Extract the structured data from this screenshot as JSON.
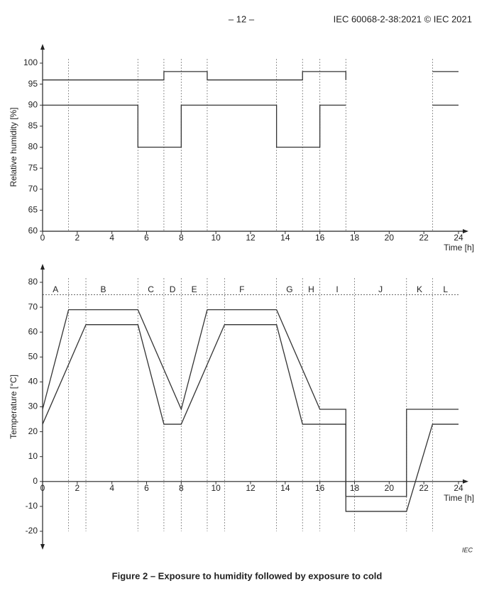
{
  "header": {
    "page": "– 12 –",
    "standard": "IEC 60068-2-38:2021 © IEC 2021"
  },
  "chart_data": [
    {
      "type": "line",
      "ylabel": "Relative humidity [%]",
      "xlabel": "Time [h]",
      "xlim": [
        0,
        24
      ],
      "xticks": [
        0,
        2,
        4,
        6,
        8,
        10,
        12,
        14,
        16,
        18,
        20,
        22,
        24
      ],
      "ylim": [
        60,
        100
      ],
      "yticks": [
        60,
        65,
        70,
        75,
        80,
        85,
        90,
        95,
        100
      ],
      "markers": [
        1.5,
        5.5,
        7,
        8,
        9.5,
        13.5,
        15,
        16,
        17.5,
        22.5
      ],
      "series": [
        {
          "color": "#333333",
          "x": [
            0,
            7,
            7,
            9.5,
            9.5,
            15,
            15,
            17.5,
            17.5,
            22.5,
            22.5,
            24
          ],
          "values": [
            96,
            96,
            98,
            98,
            96,
            96,
            98,
            98,
            96,
            null,
            98,
            98
          ]
        },
        {
          "color": "#333333",
          "x": [
            0,
            5.5,
            5.5,
            8,
            8,
            13.5,
            13.5,
            16,
            16,
            17.5,
            22.5,
            22.5,
            24
          ],
          "values": [
            90,
            90,
            80,
            80,
            90,
            90,
            80,
            80,
            90,
            90,
            null,
            90,
            90
          ]
        }
      ]
    },
    {
      "type": "line",
      "ylabel": "Temperature [°C]",
      "xlabel": "Time [h]",
      "xlim": [
        0,
        24
      ],
      "xticks": [
        0,
        2,
        4,
        6,
        8,
        10,
        12,
        14,
        16,
        18,
        20,
        22,
        24
      ],
      "ylim": [
        -20,
        80
      ],
      "yticks": [
        -20,
        -10,
        0,
        10,
        20,
        30,
        40,
        50,
        60,
        70,
        80
      ],
      "markers": [
        1.5,
        2.5,
        5.5,
        7,
        8,
        9.5,
        10.5,
        13.5,
        15,
        16,
        18,
        21,
        22.5
      ],
      "phase_line": 75,
      "phases": [
        {
          "label": "A",
          "start": 0,
          "end": 1.5
        },
        {
          "label": "B",
          "start": 1.5,
          "end": 5.5
        },
        {
          "label": "C",
          "start": 5.5,
          "end": 7
        },
        {
          "label": "D",
          "start": 7,
          "end": 8
        },
        {
          "label": "E",
          "start": 8,
          "end": 9.5
        },
        {
          "label": "F",
          "start": 9.5,
          "end": 13.5
        },
        {
          "label": "G",
          "start": 13.5,
          "end": 15
        },
        {
          "label": "H",
          "start": 15,
          "end": 16
        },
        {
          "label": "I",
          "start": 16,
          "end": 18
        },
        {
          "label": "J",
          "start": 18,
          "end": 21
        },
        {
          "label": "K",
          "start": 21,
          "end": 22.5
        },
        {
          "label": "L",
          "start": 22.5,
          "end": 24
        }
      ],
      "series": [
        {
          "color": "#333333",
          "x": [
            0,
            1.5,
            5.5,
            8,
            9.5,
            13.5,
            16,
            17.5,
            17.5,
            21,
            21,
            24
          ],
          "values": [
            29,
            69,
            69,
            29,
            69,
            69,
            29,
            29,
            -6,
            -6,
            29,
            29
          ]
        },
        {
          "color": "#333333",
          "x": [
            0,
            2.5,
            5.5,
            7,
            8,
            10.5,
            13.5,
            15,
            17.5,
            17.5,
            21,
            22.5,
            24
          ],
          "values": [
            23,
            63,
            63,
            23,
            23,
            63,
            63,
            23,
            23,
            -12,
            -12,
            23,
            23
          ]
        }
      ]
    }
  ],
  "source": "IEC",
  "caption": "Figure 2 – Exposure to humidity followed by exposure to cold"
}
